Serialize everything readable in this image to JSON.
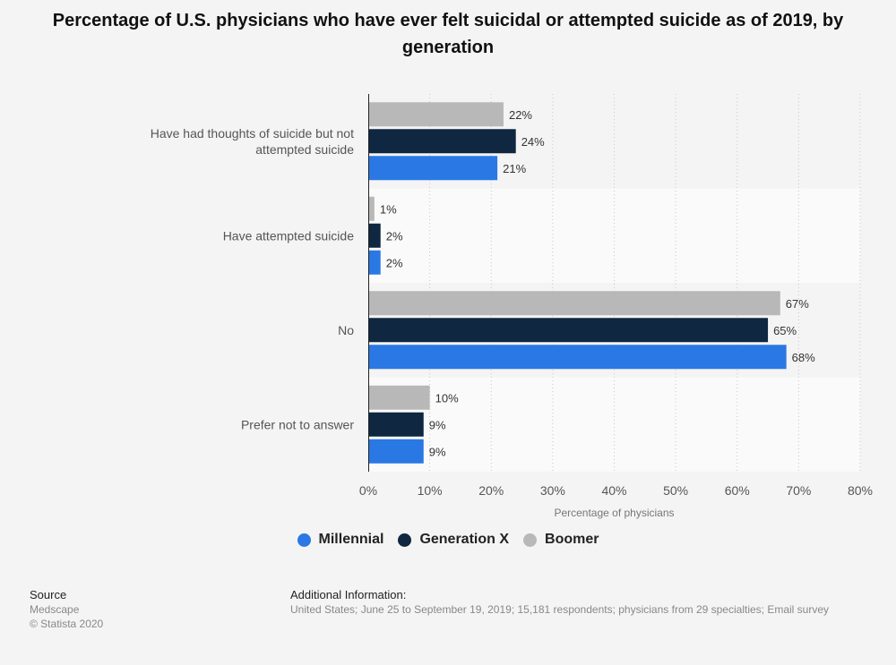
{
  "title": "Percentage of U.S. physicians who have ever felt suicidal or attempted suicide as of 2019, by generation",
  "chart_data": {
    "type": "bar",
    "orientation": "horizontal",
    "title": "Percentage of U.S. physicians who have ever felt suicidal or attempted suicide as of 2019, by generation",
    "xlabel": "Percentage of physicians",
    "ylabel": "",
    "xlim": [
      0,
      80
    ],
    "xticks": [
      "0%",
      "10%",
      "20%",
      "30%",
      "40%",
      "50%",
      "60%",
      "70%",
      "80%"
    ],
    "grid": "vertical dotted",
    "legend_position": "bottom",
    "categories": [
      "Have had thoughts of suicide but not attempted suicide",
      "Have attempted suicide",
      "No",
      "Prefer not to answer"
    ],
    "series": [
      {
        "name": "Boomer",
        "color": "#b8b8b8",
        "values": [
          22,
          1,
          67,
          10
        ],
        "labels": [
          "22%",
          "1%",
          "67%",
          "10%"
        ]
      },
      {
        "name": "Generation X",
        "color": "#0f2741",
        "values": [
          24,
          2,
          65,
          9
        ],
        "labels": [
          "24%",
          "2%",
          "65%",
          "9%"
        ]
      },
      {
        "name": "Millennial",
        "color": "#2a78e4",
        "values": [
          21,
          2,
          68,
          9
        ],
        "labels": [
          "21%",
          "2%",
          "68%",
          "9%"
        ]
      }
    ],
    "legend_order": [
      "Millennial",
      "Generation X",
      "Boomer"
    ]
  },
  "footer": {
    "source_heading": "Source",
    "source_lines": [
      "Medscape",
      "© Statista 2020"
    ],
    "info_heading": "Additional Information:",
    "info_text": "United States; June 25 to September 19, 2019; 15,181 respondents; physicians from 29 specialties; Email survey"
  }
}
